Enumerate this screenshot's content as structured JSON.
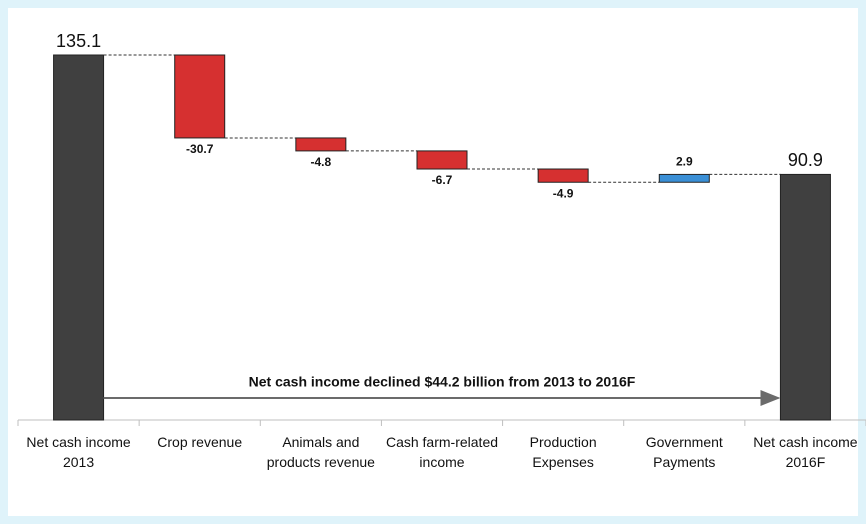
{
  "chart_data": {
    "type": "waterfall",
    "categories": [
      "Net cash income 2013",
      "Crop revenue",
      "Animals and products revenue",
      "Cash farm-related income",
      "Production Expenses",
      "Government Payments",
      "Net cash income 2016F"
    ],
    "values": [
      135.1,
      -30.7,
      -4.8,
      -6.7,
      -4.9,
      2.9,
      90.9
    ],
    "measure": [
      "total",
      "relative",
      "relative",
      "relative",
      "relative",
      "relative",
      "total"
    ],
    "total_color": "#404040",
    "decrease_color": "#d63030",
    "increase_color": "#3a8fd6",
    "annotation": "Net cash income declined $44.2 billion from 2013 to 2016F"
  }
}
